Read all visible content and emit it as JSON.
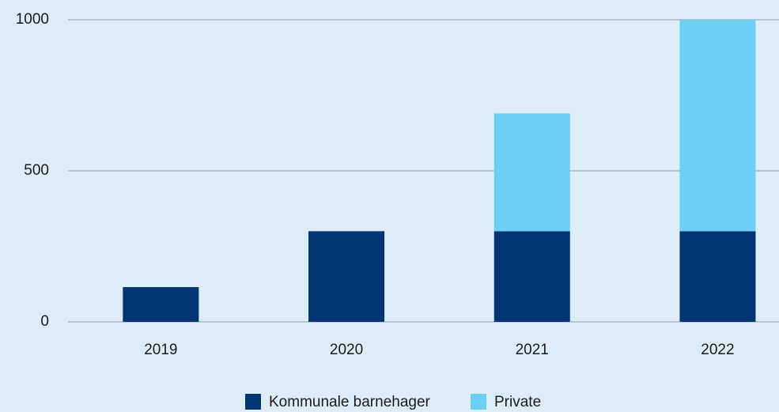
{
  "chart_data": {
    "type": "stacked_bar",
    "categories": [
      "2019",
      "2020",
      "2021",
      "2022"
    ],
    "series": [
      {
        "name": "Kommunale barnehager",
        "color": "#003473",
        "values": [
          115,
          300,
          300,
          300
        ]
      },
      {
        "name": "Private",
        "color": "#6dcff6",
        "values": [
          0,
          0,
          390,
          700
        ]
      }
    ],
    "ylim": [
      0,
      1000
    ],
    "yticks": [
      0,
      500,
      1000
    ],
    "grid": true,
    "legend": "bottom"
  }
}
